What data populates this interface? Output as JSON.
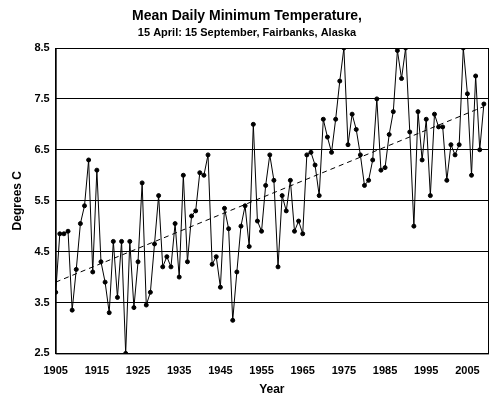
{
  "chart_data": {
    "type": "line",
    "title": "Mean Daily Minimum Temperature,",
    "subtitle": "15 April: 15 September, Fairbanks, Alaska",
    "x_label": "Year",
    "y_label": "Degrees C",
    "xlim": [
      1905,
      2010
    ],
    "xticks": [
      1905,
      1915,
      1925,
      1935,
      1945,
      1955,
      1965,
      1975,
      1985,
      1995,
      2005
    ],
    "ylim": [
      2.5,
      8.5
    ],
    "yticks": [
      2.5,
      3.5,
      4.5,
      5.5,
      6.5,
      7.5,
      8.5
    ],
    "grid": true,
    "series": [
      {
        "color": "#000000",
        "marker": "circle",
        "line_style": "solid",
        "x": [
          1905,
          1906,
          1907,
          1908,
          1909,
          1910,
          1911,
          1912,
          1913,
          1914,
          1915,
          1916,
          1917,
          1918,
          1919,
          1920,
          1921,
          1922,
          1923,
          1924,
          1925,
          1926,
          1927,
          1928,
          1929,
          1930,
          1931,
          1932,
          1933,
          1934,
          1935,
          1936,
          1937,
          1938,
          1939,
          1940,
          1941,
          1942,
          1943,
          1944,
          1945,
          1946,
          1947,
          1948,
          1949,
          1950,
          1951,
          1952,
          1953,
          1954,
          1955,
          1956,
          1957,
          1958,
          1959,
          1960,
          1961,
          1962,
          1963,
          1964,
          1965,
          1966,
          1967,
          1968,
          1969,
          1970,
          1971,
          1972,
          1973,
          1974,
          1975,
          1976,
          1977,
          1978,
          1979,
          1980,
          1981,
          1982,
          1983,
          1984,
          1985,
          1986,
          1987,
          1988,
          1989,
          1990,
          1991,
          1992,
          1993,
          1994,
          1995,
          1996,
          1997,
          1998,
          1999,
          2000,
          2001,
          2002,
          2003,
          2004,
          2005,
          2006,
          2007,
          2008,
          2009
        ],
        "values": [
          3.7,
          4.85,
          4.85,
          4.9,
          3.35,
          4.15,
          5.05,
          5.4,
          6.3,
          4.1,
          6.1,
          4.3,
          3.9,
          3.3,
          4.7,
          3.6,
          4.7,
          2.5,
          4.7,
          3.4,
          4.3,
          5.85,
          3.45,
          3.7,
          4.65,
          5.6,
          4.2,
          4.4,
          4.2,
          5.05,
          4.0,
          6.0,
          4.3,
          5.2,
          5.3,
          6.05,
          6.0,
          6.4,
          4.25,
          4.4,
          3.8,
          5.35,
          4.95,
          3.15,
          4.1,
          5.0,
          5.4,
          4.6,
          7.0,
          5.1,
          4.9,
          5.8,
          6.4,
          5.9,
          4.2,
          5.6,
          5.3,
          5.9,
          4.9,
          5.1,
          4.85,
          6.4,
          6.45,
          6.2,
          5.6,
          7.1,
          6.75,
          6.45,
          7.1,
          7.85,
          8.5,
          6.6,
          7.2,
          6.9,
          6.4,
          5.8,
          5.9,
          6.3,
          7.5,
          6.1,
          6.15,
          6.8,
          7.25,
          8.45,
          7.9,
          8.5,
          6.85,
          5.0,
          7.25,
          6.3,
          7.1,
          5.6,
          7.2,
          6.95,
          6.95,
          5.9,
          6.6,
          6.4,
          6.6,
          8.5,
          7.6,
          6.0,
          7.95,
          6.5,
          7.4
        ]
      },
      {
        "color": "#000000",
        "marker": "none",
        "line_style": "dashed",
        "x": [
          1905,
          2009
        ],
        "values": [
          3.9,
          7.35
        ]
      }
    ]
  }
}
